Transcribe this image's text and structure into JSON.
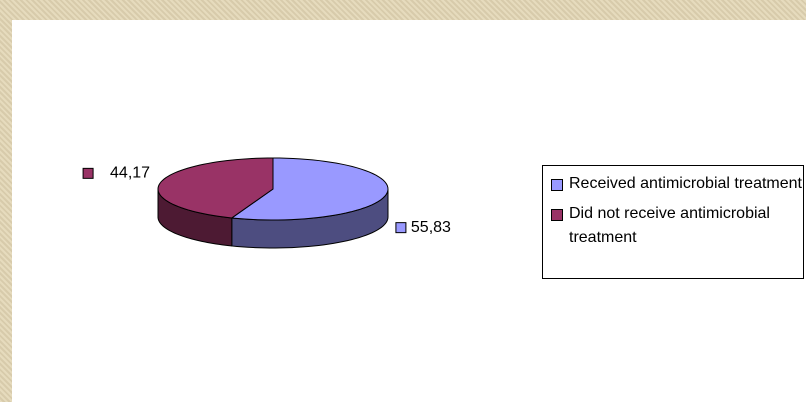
{
  "chart_data": {
    "type": "pie",
    "categories": [
      "Received antimicrobial treatment",
      "Did not receive antimicrobial treatment"
    ],
    "values": [
      55.83,
      44.17
    ],
    "value_labels": [
      "55,83",
      "44,17"
    ],
    "colors": [
      "#9999ff",
      "#993366"
    ],
    "legend": "right"
  }
}
